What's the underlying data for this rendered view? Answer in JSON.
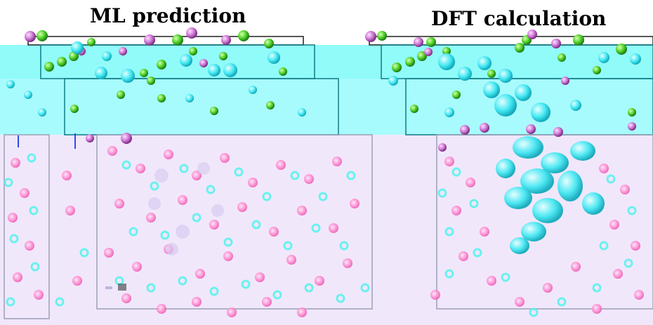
{
  "panels": [
    {
      "title": "ML prediction"
    },
    {
      "title": "DFT calculation"
    }
  ],
  "colors": {
    "background_cyan": "#8ffcfa",
    "background_pink": "#f1e7fb",
    "atom_green": "#54d42a",
    "atom_purple": "#d07ad6",
    "atom_cyan": "#44e8f2",
    "atom_pink": "#ff86cf",
    "frame_line": "#202020"
  }
}
